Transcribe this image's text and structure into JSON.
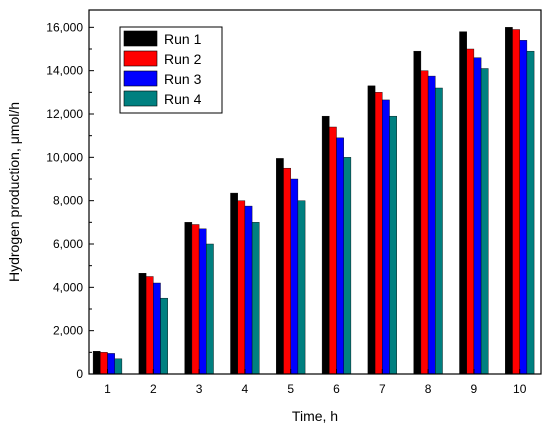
{
  "chart_data": {
    "type": "bar",
    "title": "",
    "xlabel": "Time, h",
    "ylabel": "Hydrogen production, μmol/h",
    "categories": [
      "1",
      "2",
      "3",
      "4",
      "5",
      "6",
      "7",
      "8",
      "9",
      "10"
    ],
    "ylim": [
      0,
      16800
    ],
    "yticks": [
      0,
      2000,
      4000,
      6000,
      8000,
      10000,
      12000,
      14000,
      16000
    ],
    "ytick_labels": [
      "0",
      "2,000",
      "4,000",
      "6,000",
      "8,000",
      "10,000",
      "12,000",
      "14,000",
      "16,000"
    ],
    "grid": false,
    "legend_position": "top-left",
    "series": [
      {
        "name": "Run 1",
        "color": "#000000",
        "values": [
          1050,
          4650,
          7000,
          8350,
          9950,
          11900,
          13300,
          14900,
          15800,
          16000
        ]
      },
      {
        "name": "Run 2",
        "color": "#ff0000",
        "values": [
          1000,
          4500,
          6900,
          8000,
          9500,
          11400,
          13000,
          14000,
          15000,
          15900
        ]
      },
      {
        "name": "Run 3",
        "color": "#0000ff",
        "values": [
          950,
          4200,
          6700,
          7750,
          9000,
          10900,
          12650,
          13750,
          14600,
          15400
        ]
      },
      {
        "name": "Run 4",
        "color": "#008080",
        "values": [
          700,
          3500,
          6000,
          7000,
          8000,
          10000,
          11900,
          13200,
          14100,
          14900
        ]
      }
    ]
  }
}
